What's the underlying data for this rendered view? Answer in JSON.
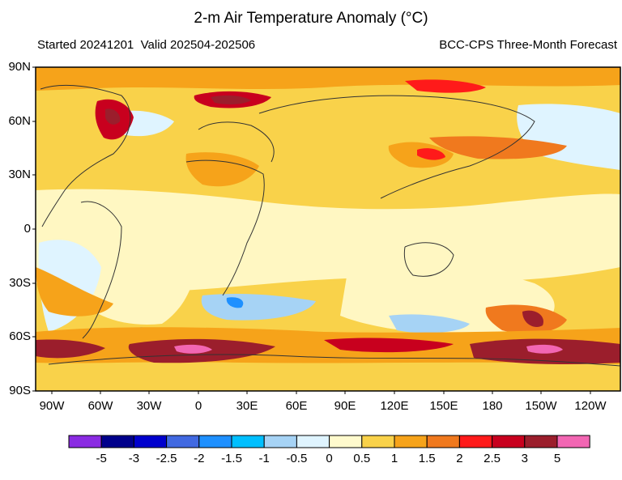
{
  "header": {
    "title": "2-m Air Temperature Anomaly (°C)",
    "started": "Started 20241201",
    "valid": "Valid 202504-202506",
    "source": "BCC-CPS Three-Month Forecast"
  },
  "axes": {
    "lat_labels": [
      "90N",
      "60N",
      "30N",
      "0",
      "30S",
      "60S",
      "90S"
    ],
    "lon_labels": [
      "90W",
      "60W",
      "30W",
      "0",
      "30E",
      "60E",
      "90E",
      "120E",
      "150E",
      "180",
      "150W",
      "120W"
    ]
  },
  "colorbar": {
    "labels": [
      "-5",
      "-3",
      "-2.5",
      "-2",
      "-1.5",
      "-1",
      "-0.5",
      "0",
      "0.5",
      "1",
      "1.5",
      "2",
      "2.5",
      "3",
      "5"
    ],
    "colors": [
      "#8a2be2",
      "#00008b",
      "#0000cd",
      "#4169e1",
      "#1e90ff",
      "#00bfff",
      "#a6d3f5",
      "#dff4ff",
      "#fffacd",
      "#f9d24a",
      "#f6a31a",
      "#f0791e",
      "#ff1a1a",
      "#c8001e",
      "#9b1e2c",
      "#f266b3"
    ]
  },
  "palette": {
    "background_land_ocean": "#fff7c2",
    "coast": "#333333"
  }
}
